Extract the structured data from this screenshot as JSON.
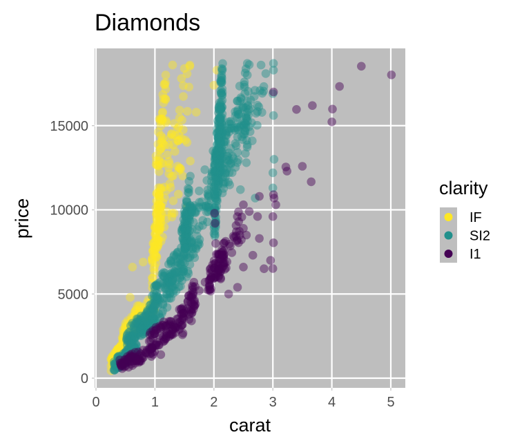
{
  "chart_data": {
    "type": "scatter",
    "title": "Diamonds",
    "xlabel": "carat",
    "ylabel": "price",
    "xlim": [
      -0.02,
      5.25
    ],
    "ylim": [
      -300,
      19100
    ],
    "xticks": [
      0,
      1,
      2,
      3,
      4,
      5
    ],
    "xtick_labels": [
      "0",
      "1",
      "2",
      "3",
      "4",
      "5"
    ],
    "yticks": [
      0,
      5000,
      10000,
      15000
    ],
    "ytick_labels": [
      "0",
      "5000",
      "10000",
      "15000"
    ],
    "grid": true,
    "panel_background": "#BEBEBE",
    "point_alpha": 0.45,
    "legend": {
      "title": "clarity",
      "position": "right",
      "entries": [
        {
          "label": "IF",
          "color": "#FDE725"
        },
        {
          "label": "SI2",
          "color": "#21908C"
        },
        {
          "label": "I1",
          "color": "#440154"
        }
      ]
    },
    "series": [
      {
        "name": "IF",
        "color": "#FDE725",
        "clusters": [
          {
            "x_range": [
              0.25,
              0.55
            ],
            "y_range": [
              400,
              2400
            ],
            "n": 90
          },
          {
            "x_range": [
              0.4,
              0.75
            ],
            "y_range": [
              1200,
              4500
            ],
            "n": 80
          },
          {
            "x_range": [
              0.6,
              1.0
            ],
            "y_range": [
              2500,
              5000
            ],
            "n": 40
          },
          {
            "x_range": [
              0.95,
              1.1
            ],
            "y_range": [
              5000,
              11500
            ],
            "n": 90
          },
          {
            "x_range": [
              1.0,
              1.2
            ],
            "y_range": [
              9000,
              18500
            ],
            "n": 50
          },
          {
            "x_range": [
              1.1,
              1.6
            ],
            "y_range": [
              6500,
              18600
            ],
            "n": 60
          }
        ],
        "points": [
          {
            "x": 0.62,
            "y": 6600
          },
          {
            "x": 0.8,
            "y": 6900
          },
          {
            "x": 0.58,
            "y": 4800
          },
          {
            "x": 1.6,
            "y": 12900
          },
          {
            "x": 1.55,
            "y": 10200
          },
          {
            "x": 1.5,
            "y": 18400
          },
          {
            "x": 1.45,
            "y": 17800
          },
          {
            "x": 1.3,
            "y": 18600
          },
          {
            "x": 1.7,
            "y": 15800
          },
          {
            "x": 2.05,
            "y": 18300
          },
          {
            "x": 2.0,
            "y": 17400
          }
        ]
      },
      {
        "name": "SI2",
        "color": "#21908C",
        "clusters": [
          {
            "x_range": [
              0.3,
              0.7
            ],
            "y_range": [
              400,
              2000
            ],
            "n": 100
          },
          {
            "x_range": [
              0.5,
              1.0
            ],
            "y_range": [
              1500,
              4500
            ],
            "n": 110
          },
          {
            "x_range": [
              0.9,
              1.5
            ],
            "y_range": [
              2500,
              8000
            ],
            "n": 140
          },
          {
            "x_range": [
              1.45,
              1.6
            ],
            "y_range": [
              6000,
              12000
            ],
            "n": 70
          },
          {
            "x_range": [
              1.5,
              2.0
            ],
            "y_range": [
              5500,
              13500
            ],
            "n": 90
          },
          {
            "x_range": [
              2.0,
              2.15
            ],
            "y_range": [
              7500,
              18700
            ],
            "n": 200
          },
          {
            "x_range": [
              2.1,
              2.6
            ],
            "y_range": [
              9500,
              18700
            ],
            "n": 110
          },
          {
            "x_range": [
              2.5,
              2.9
            ],
            "y_range": [
              13000,
              18700
            ],
            "n": 30
          }
        ],
        "points": [
          {
            "x": 3.01,
            "y": 18700
          },
          {
            "x": 3.01,
            "y": 18300
          },
          {
            "x": 3.0,
            "y": 16900
          },
          {
            "x": 3.01,
            "y": 15600
          },
          {
            "x": 3.02,
            "y": 13000
          },
          {
            "x": 3.0,
            "y": 12200
          },
          {
            "x": 3.0,
            "y": 11300
          },
          {
            "x": 2.8,
            "y": 18600
          },
          {
            "x": 2.65,
            "y": 14100
          },
          {
            "x": 2.55,
            "y": 12800
          },
          {
            "x": 2.7,
            "y": 10700
          },
          {
            "x": 2.45,
            "y": 11200
          }
        ]
      },
      {
        "name": "I1",
        "color": "#440154",
        "clusters": [
          {
            "x_range": [
              0.4,
              1.0
            ],
            "y_range": [
              400,
              2000
            ],
            "n": 70
          },
          {
            "x_range": [
              0.9,
              1.5
            ],
            "y_range": [
              1500,
              4200
            ],
            "n": 80
          },
          {
            "x_range": [
              1.45,
              1.7
            ],
            "y_range": [
              2200,
              6000
            ],
            "n": 40
          },
          {
            "x_range": [
              1.9,
              2.2
            ],
            "y_range": [
              4800,
              8200
            ],
            "n": 60
          },
          {
            "x_range": [
              2.0,
              2.5
            ],
            "y_range": [
              5000,
              10500
            ],
            "n": 30
          }
        ],
        "points": [
          {
            "x": 5.01,
            "y": 18018
          },
          {
            "x": 4.5,
            "y": 18531
          },
          {
            "x": 4.13,
            "y": 17329
          },
          {
            "x": 3.67,
            "y": 16193
          },
          {
            "x": 3.4,
            "y": 15964
          },
          {
            "x": 4.01,
            "y": 15984
          },
          {
            "x": 4.0,
            "y": 15223
          },
          {
            "x": 3.22,
            "y": 12545
          },
          {
            "x": 3.24,
            "y": 12300
          },
          {
            "x": 3.5,
            "y": 12587
          },
          {
            "x": 3.65,
            "y": 11668
          },
          {
            "x": 3.01,
            "y": 17000
          },
          {
            "x": 3.01,
            "y": 10900
          },
          {
            "x": 3.0,
            "y": 9600
          },
          {
            "x": 3.01,
            "y": 8040
          },
          {
            "x": 3.0,
            "y": 6512
          },
          {
            "x": 3.05,
            "y": 10300
          },
          {
            "x": 3.02,
            "y": 10700
          },
          {
            "x": 2.77,
            "y": 10800
          },
          {
            "x": 2.5,
            "y": 10300
          },
          {
            "x": 2.42,
            "y": 9300
          },
          {
            "x": 2.6,
            "y": 9900
          },
          {
            "x": 2.74,
            "y": 9600
          },
          {
            "x": 2.55,
            "y": 8500
          },
          {
            "x": 2.77,
            "y": 8300
          },
          {
            "x": 2.66,
            "y": 7300
          },
          {
            "x": 2.5,
            "y": 6600
          },
          {
            "x": 2.96,
            "y": 7000
          },
          {
            "x": 2.85,
            "y": 6500
          },
          {
            "x": 2.4,
            "y": 5400
          },
          {
            "x": 2.25,
            "y": 5000
          },
          {
            "x": 2.5,
            "y": 8900
          },
          {
            "x": 2.38,
            "y": 8700
          },
          {
            "x": 2.01,
            "y": 9800
          },
          {
            "x": 2.02,
            "y": 9200
          },
          {
            "x": 2.03,
            "y": 8000
          },
          {
            "x": 1.85,
            "y": 5700
          },
          {
            "x": 1.75,
            "y": 5200
          },
          {
            "x": 1.95,
            "y": 5300
          },
          {
            "x": 1.1,
            "y": 1400
          },
          {
            "x": 1.15,
            "y": 2300
          },
          {
            "x": 1.62,
            "y": 3400
          }
        ]
      }
    ]
  }
}
